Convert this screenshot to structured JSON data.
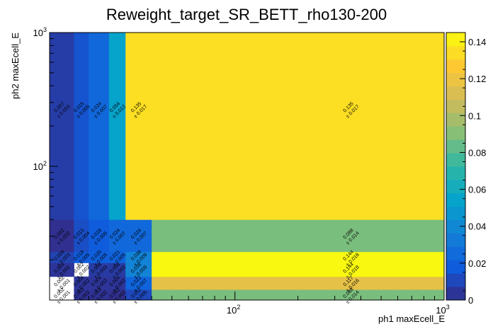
{
  "chart_data": {
    "type": "heatmap",
    "title": "Reweight_target_SR_BETT_rho130-200",
    "xlabel": "ph1 maxEcell_E",
    "ylabel": "ph2 maxEcell_E",
    "x_scale": "log",
    "y_scale": "log",
    "xlim": [
      13,
      1000
    ],
    "ylim": [
      10,
      1000
    ],
    "x_ticks": [
      {
        "value": 100,
        "base": "10",
        "exp": "2"
      },
      {
        "value": 1000,
        "base": "10",
        "exp": "3"
      }
    ],
    "y_ticks": [
      {
        "value": 100,
        "base": "10",
        "exp": "2"
      },
      {
        "value": 1000,
        "base": "10",
        "exp": "3"
      }
    ],
    "x_edges": [
      13,
      17,
      20,
      25,
      30,
      40,
      1000
    ],
    "y_edges": [
      10,
      12,
      15,
      19,
      23,
      40,
      1000
    ],
    "z_range": [
      0,
      0.145
    ],
    "colorbar_ticks": [
      "0",
      "0.02",
      "0.04",
      "0.06",
      "0.08",
      "0.1",
      "0.12",
      "0.14"
    ],
    "cells": [
      {
        "xi": 0,
        "yi": 0,
        "value": null,
        "label": "0.002",
        "err": "± 0.001"
      },
      {
        "xi": 1,
        "yi": 0,
        "value": 0.003,
        "label": "0.003",
        "err": "± 0.002"
      },
      {
        "xi": 2,
        "yi": 0,
        "value": 0.003,
        "label": "0.003",
        "err": "± 0.002"
      },
      {
        "xi": 3,
        "yi": 0,
        "value": 0.002,
        "label": "0.002",
        "err": "± 0.002"
      },
      {
        "xi": 4,
        "yi": 0,
        "value": 0.011,
        "label": "0.011",
        "err": "± 0.005"
      },
      {
        "xi": 5,
        "yi": 0,
        "value": 0.088,
        "label": "0.088",
        "err": "± 0.014"
      },
      {
        "xi": 0,
        "yi": 1,
        "value": null,
        "label": "0.002",
        "err": "± 0.001"
      },
      {
        "xi": 1,
        "yi": 1,
        "value": 0.004,
        "label": "0.004",
        "err": "± 0.002"
      },
      {
        "xi": 2,
        "yi": 1,
        "value": 0.004,
        "label": "0.004",
        "err": "± 0.002"
      },
      {
        "xi": 3,
        "yi": 1,
        "value": 0.004,
        "label": "0.004",
        "err": "± 0.002"
      },
      {
        "xi": 4,
        "yi": 1,
        "value": 0.022,
        "label": "0.022",
        "err": "± 0.007"
      },
      {
        "xi": 5,
        "yi": 1,
        "value": 0.117,
        "label": "0.117",
        "err": "± 0.016"
      },
      {
        "xi": 0,
        "yi": 2,
        "value": 0.004,
        "label": "0.004",
        "err": "± 0.002"
      },
      {
        "xi": 1,
        "yi": 2,
        "value": null,
        "label": "0.002",
        "err": "± 0.002"
      },
      {
        "xi": 2,
        "yi": 2,
        "value": 0.006,
        "label": "0.006",
        "err": "± 0.003"
      },
      {
        "xi": 3,
        "yi": 2,
        "value": 0.006,
        "label": "0.006",
        "err": "± 0.003"
      },
      {
        "xi": 4,
        "yi": 2,
        "value": 0.038,
        "label": "0.038",
        "err": "± 0.009"
      },
      {
        "xi": 5,
        "yi": 2,
        "value": 0.144,
        "label": "0.144",
        "err": "± 0.018"
      },
      {
        "xi": 0,
        "yi": 3,
        "value": 0.009,
        "label": "0.009",
        "err": "± 0.003"
      },
      {
        "xi": 1,
        "yi": 3,
        "value": 0.018,
        "label": "0.018",
        "err": "± 0.005"
      },
      {
        "xi": 2,
        "yi": 3,
        "value": 0.02,
        "label": "0.020",
        "err": "± 0.005"
      },
      {
        "xi": 3,
        "yi": 3,
        "value": 0.021,
        "label": "0.021",
        "err": "± 0.005"
      },
      {
        "xi": 4,
        "yi": 3,
        "value": 0.038,
        "label": "0.038",
        "err": "± 0.009"
      },
      {
        "xi": 5,
        "yi": 3,
        "value": 0.144,
        "label": "0.144",
        "err": "± 0.018"
      },
      {
        "xi": 0,
        "yi": 4,
        "value": 0.002,
        "label": "0.002",
        "err": "± 0.002"
      },
      {
        "xi": 1,
        "yi": 4,
        "value": 0.013,
        "label": "0.013",
        "err": "± 0.004"
      },
      {
        "xi": 2,
        "yi": 4,
        "value": 0.018,
        "label": "0.018",
        "err": "± 0.005"
      },
      {
        "xi": 3,
        "yi": 4,
        "value": 0.024,
        "label": "0.024",
        "err": "± 0.007"
      },
      {
        "xi": 4,
        "yi": 4,
        "value": 0.024,
        "label": "0.024",
        "err": "± 0.007"
      },
      {
        "xi": 5,
        "yi": 4,
        "value": 0.088,
        "label": "0.088",
        "err": "± 0.014"
      },
      {
        "xi": 0,
        "yi": 5,
        "value": 0.007,
        "label": "0.007",
        "err": "± 0.003"
      },
      {
        "xi": 1,
        "yi": 5,
        "value": 0.015,
        "label": "0.015",
        "err": "± 0.005"
      },
      {
        "xi": 2,
        "yi": 5,
        "value": 0.024,
        "label": "0.024",
        "err": "± 0.007"
      },
      {
        "xi": 3,
        "yi": 5,
        "value": 0.054,
        "label": "0.054",
        "err": "± 0.012"
      },
      {
        "xi": 4,
        "yi": 5,
        "value": 0.135,
        "label": "0.135",
        "err": "± 0.017"
      },
      {
        "xi": 5,
        "yi": 5,
        "value": 0.135,
        "label": "0.135",
        "err": "± 0.017"
      }
    ],
    "palette": [
      "#352a87",
      "#0f5cdd",
      "#1481d6",
      "#06a4ca",
      "#2eb7a4",
      "#87bf77",
      "#d1bb59",
      "#fec832",
      "#f9fb0e"
    ]
  }
}
